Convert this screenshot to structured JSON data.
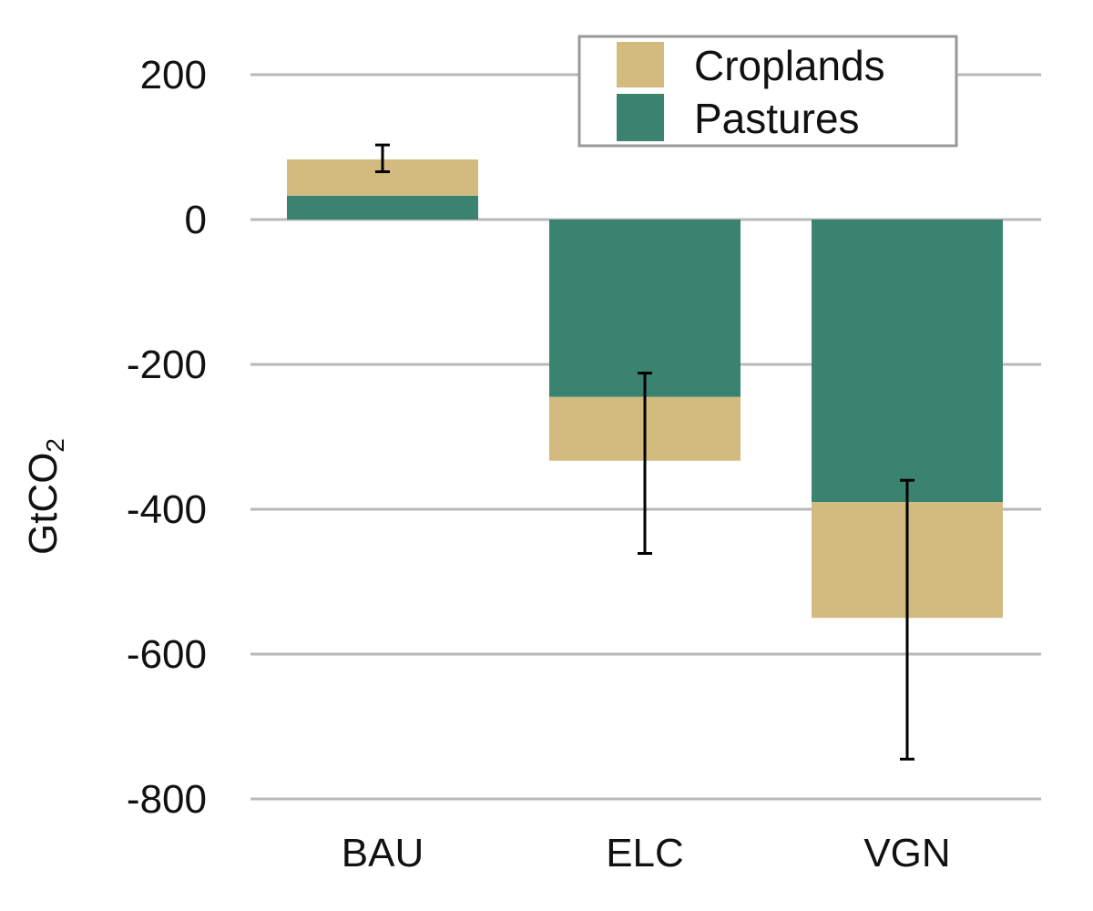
{
  "chart_data": {
    "type": "bar",
    "stacked": true,
    "title": "",
    "xlabel": "",
    "ylabel": "GtCO",
    "ylabel_subscript": "2",
    "categories": [
      "BAU",
      "ELC",
      "VGN"
    ],
    "ylim": [
      -800,
      200
    ],
    "yticks": [
      200,
      0,
      -200,
      -400,
      -600,
      -800
    ],
    "ytick_labels": [
      "200",
      "0",
      "-200",
      "-400",
      "-600",
      "-800"
    ],
    "grid": true,
    "legend_position": "top-right",
    "series": [
      {
        "name": "Pastures",
        "color": "#3a8370",
        "values": [
          33,
          -245,
          -390
        ]
      },
      {
        "name": "Croplands",
        "color": "#d3ba7e",
        "values": [
          50,
          -88,
          -160
        ]
      }
    ],
    "legend_order": [
      "Croplands",
      "Pastures"
    ],
    "error_bars": [
      {
        "category": "BAU",
        "low": 66,
        "high": 103
      },
      {
        "category": "ELC",
        "low": -461,
        "high": -212
      },
      {
        "category": "VGN",
        "low": -745,
        "high": -360
      }
    ]
  }
}
